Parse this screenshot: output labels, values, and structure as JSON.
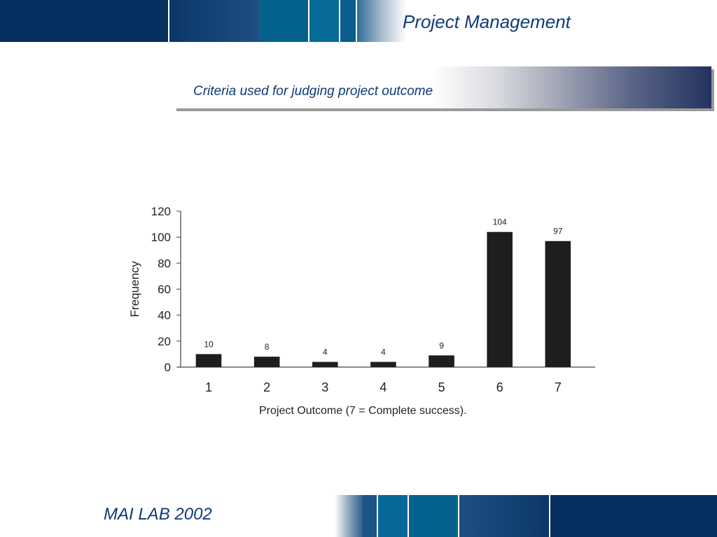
{
  "header": {
    "title": "Project Management"
  },
  "slide": {
    "subtitle": "Criteria used for judging project outcome"
  },
  "footer": {
    "text": "MAI LAB 2002"
  },
  "colors": {
    "navy": "#0d3566",
    "accent_blue": "#0f3a78",
    "bar_fill": "#1e1e1e"
  },
  "chart_data": {
    "type": "bar",
    "categories": [
      "1",
      "2",
      "3",
      "4",
      "5",
      "6",
      "7"
    ],
    "values": [
      10,
      8,
      4,
      4,
      9,
      104,
      97
    ],
    "data_labels": [
      "10",
      "8",
      "4",
      "4",
      "9",
      "104",
      "97"
    ],
    "xlabel": "Project Outcome  (7 = Complete success).",
    "ylabel": "Frequency",
    "ylim": [
      0,
      120
    ],
    "yticks": [
      "0",
      "20",
      "40",
      "60",
      "80",
      "100",
      "120"
    ],
    "grid": false,
    "legend": "none"
  }
}
